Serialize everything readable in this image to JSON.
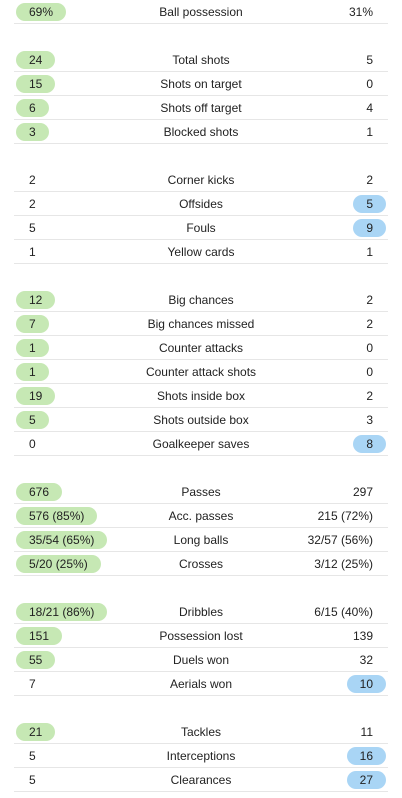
{
  "colors": {
    "home_highlight": "#c6e8b4",
    "away_highlight": "#a9d5f5"
  },
  "groups": [
    {
      "rows": [
        {
          "label": "Ball possession",
          "home": "69%",
          "away": "31%",
          "hl": "home"
        }
      ]
    },
    {
      "rows": [
        {
          "label": "Total shots",
          "home": "24",
          "away": "5",
          "hl": "home"
        },
        {
          "label": "Shots on target",
          "home": "15",
          "away": "0",
          "hl": "home"
        },
        {
          "label": "Shots off target",
          "home": "6",
          "away": "4",
          "hl": "home"
        },
        {
          "label": "Blocked shots",
          "home": "3",
          "away": "1",
          "hl": "home"
        }
      ]
    },
    {
      "rows": [
        {
          "label": "Corner kicks",
          "home": "2",
          "away": "2",
          "hl": "none"
        },
        {
          "label": "Offsides",
          "home": "2",
          "away": "5",
          "hl": "away"
        },
        {
          "label": "Fouls",
          "home": "5",
          "away": "9",
          "hl": "away"
        },
        {
          "label": "Yellow cards",
          "home": "1",
          "away": "1",
          "hl": "none"
        }
      ]
    },
    {
      "rows": [
        {
          "label": "Big chances",
          "home": "12",
          "away": "2",
          "hl": "home"
        },
        {
          "label": "Big chances missed",
          "home": "7",
          "away": "2",
          "hl": "home"
        },
        {
          "label": "Counter attacks",
          "home": "1",
          "away": "0",
          "hl": "home"
        },
        {
          "label": "Counter attack shots",
          "home": "1",
          "away": "0",
          "hl": "home"
        },
        {
          "label": "Shots inside box",
          "home": "19",
          "away": "2",
          "hl": "home"
        },
        {
          "label": "Shots outside box",
          "home": "5",
          "away": "3",
          "hl": "home"
        },
        {
          "label": "Goalkeeper saves",
          "home": "0",
          "away": "8",
          "hl": "away"
        }
      ]
    },
    {
      "rows": [
        {
          "label": "Passes",
          "home": "676",
          "away": "297",
          "hl": "home"
        },
        {
          "label": "Acc. passes",
          "home": "576 (85%)",
          "away": "215 (72%)",
          "hl": "home"
        },
        {
          "label": "Long balls",
          "home": "35/54 (65%)",
          "away": "32/57 (56%)",
          "hl": "home"
        },
        {
          "label": "Crosses",
          "home": "5/20 (25%)",
          "away": "3/12 (25%)",
          "hl": "home"
        }
      ]
    },
    {
      "rows": [
        {
          "label": "Dribbles",
          "home": "18/21 (86%)",
          "away": "6/15 (40%)",
          "hl": "home"
        },
        {
          "label": "Possession lost",
          "home": "151",
          "away": "139",
          "hl": "home"
        },
        {
          "label": "Duels won",
          "home": "55",
          "away": "32",
          "hl": "home"
        },
        {
          "label": "Aerials won",
          "home": "7",
          "away": "10",
          "hl": "away"
        }
      ]
    },
    {
      "rows": [
        {
          "label": "Tackles",
          "home": "21",
          "away": "11",
          "hl": "home"
        },
        {
          "label": "Interceptions",
          "home": "5",
          "away": "16",
          "hl": "away"
        },
        {
          "label": "Clearances",
          "home": "5",
          "away": "27",
          "hl": "away"
        }
      ]
    }
  ]
}
